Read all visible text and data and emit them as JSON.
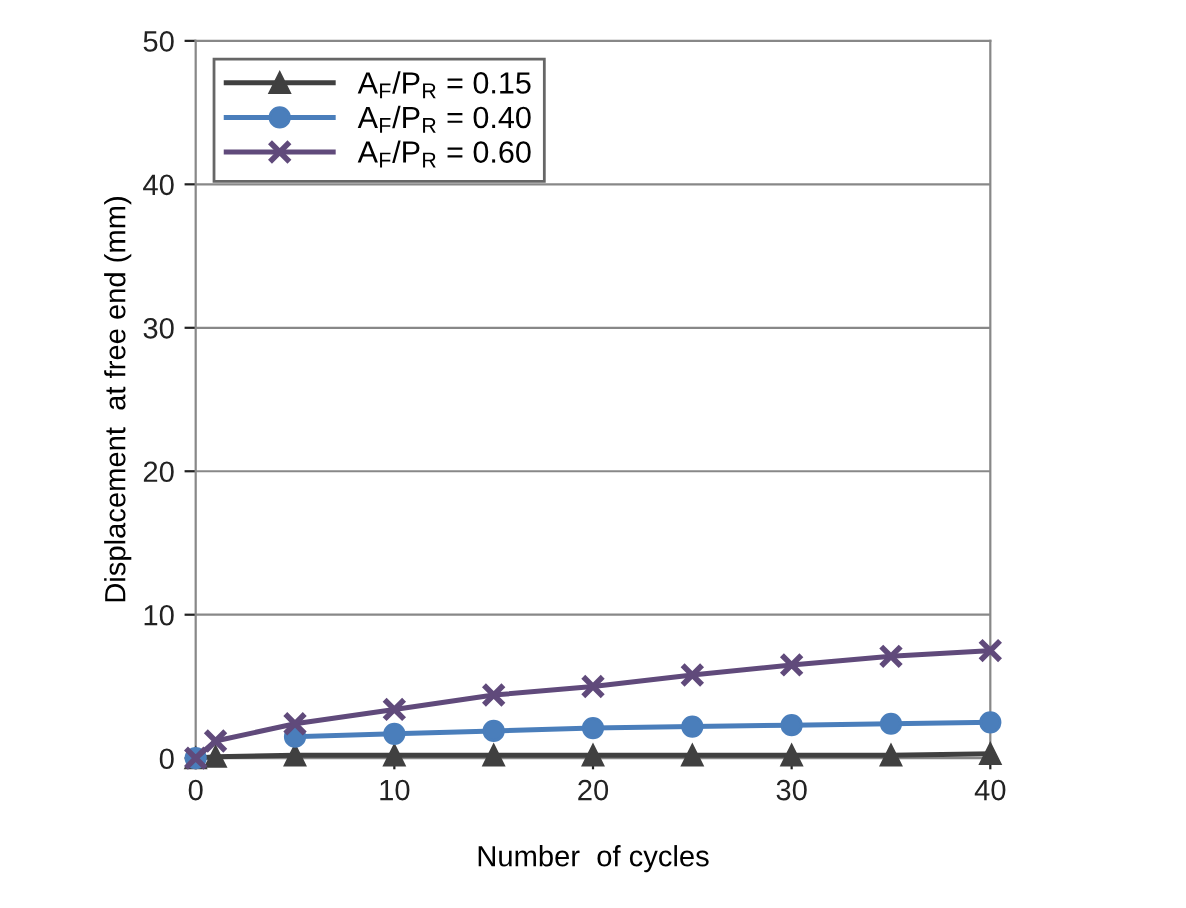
{
  "chart_data": {
    "type": "line",
    "xlabel": "Number  of cycles",
    "ylabel": "Displacement  at free end (mm)",
    "xlim": [
      0,
      40
    ],
    "ylim": [
      0,
      50
    ],
    "xticks": [
      0,
      10,
      20,
      30,
      40
    ],
    "yticks": [
      0,
      10,
      20,
      30,
      40,
      50
    ],
    "grid": "y",
    "legend": "top left",
    "series": [
      {
        "name": "A$_{F}$/P$_{R}$ = 0.15",
        "color": "#404040",
        "marker": "triangle",
        "x": [
          0,
          1,
          5,
          10,
          15,
          20,
          25,
          30,
          35,
          40
        ],
        "values": [
          0,
          0.1,
          0.2,
          0.2,
          0.2,
          0.2,
          0.2,
          0.2,
          0.2,
          0.3
        ]
      },
      {
        "name": "A$_{F}$/P$_{R}$ = 0.40",
        "color": "#4a7ebb",
        "marker": "circle",
        "x": [
          0,
          1,
          5,
          10,
          15,
          20,
          25,
          30,
          35,
          40
        ],
        "values": [
          0,
          null,
          1.5,
          1.7,
          1.9,
          2.1,
          2.2,
          2.3,
          2.4,
          2.5
        ]
      },
      {
        "name": "A$_{F}$/P$_{R}$ = 0.60",
        "color": "#604a7b",
        "marker": "cross",
        "x": [
          0,
          1,
          5,
          10,
          15,
          20,
          25,
          30,
          35,
          40
        ],
        "values": [
          0,
          1.2,
          2.4,
          3.4,
          4.4,
          5.0,
          5.8,
          6.5,
          7.1,
          7.5
        ]
      }
    ]
  }
}
